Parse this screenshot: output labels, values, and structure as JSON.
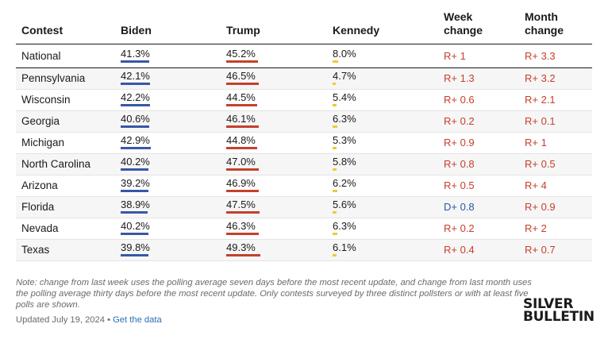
{
  "colors": {
    "biden": "#3658a6",
    "trump": "#c5402c",
    "kennedy": "#f0cc2e",
    "republican_shift": "#c5402c",
    "democratic_shift": "#2a56a8",
    "link": "#2a6fb5"
  },
  "headers": {
    "contest": "Contest",
    "biden": "Biden",
    "trump": "Trump",
    "kennedy": "Kennedy",
    "week_line1": "Week",
    "week_line2": "change",
    "month_line1": "Month",
    "month_line2": "change"
  },
  "rows": [
    {
      "contest": "National",
      "biden": "41.3%",
      "biden_value": 41.3,
      "trump": "45.2%",
      "trump_value": 45.2,
      "kennedy": "8.0%",
      "kennedy_value": 8.0,
      "week": "R+ 1",
      "week_party": "R",
      "month": "R+ 3.3",
      "month_party": "R"
    },
    {
      "contest": "Pennsylvania",
      "biden": "42.1%",
      "biden_value": 42.1,
      "trump": "46.5%",
      "trump_value": 46.5,
      "kennedy": "4.7%",
      "kennedy_value": 4.7,
      "week": "R+ 1.3",
      "week_party": "R",
      "month": "R+ 3.2",
      "month_party": "R"
    },
    {
      "contest": "Wisconsin",
      "biden": "42.2%",
      "biden_value": 42.2,
      "trump": "44.5%",
      "trump_value": 44.5,
      "kennedy": "5.4%",
      "kennedy_value": 5.4,
      "week": "R+ 0.6",
      "week_party": "R",
      "month": "R+ 2.1",
      "month_party": "R"
    },
    {
      "contest": "Georgia",
      "biden": "40.6%",
      "biden_value": 40.6,
      "trump": "46.1%",
      "trump_value": 46.1,
      "kennedy": "6.3%",
      "kennedy_value": 6.3,
      "week": "R+ 0.2",
      "week_party": "R",
      "month": "R+ 0.1",
      "month_party": "R"
    },
    {
      "contest": "Michigan",
      "biden": "42.9%",
      "biden_value": 42.9,
      "trump": "44.8%",
      "trump_value": 44.8,
      "kennedy": "5.3%",
      "kennedy_value": 5.3,
      "week": "R+ 0.9",
      "week_party": "R",
      "month": "R+ 1",
      "month_party": "R"
    },
    {
      "contest": "North Carolina",
      "biden": "40.2%",
      "biden_value": 40.2,
      "trump": "47.0%",
      "trump_value": 47.0,
      "kennedy": "5.8%",
      "kennedy_value": 5.8,
      "week": "R+ 0.8",
      "week_party": "R",
      "month": "R+ 0.5",
      "month_party": "R"
    },
    {
      "contest": "Arizona",
      "biden": "39.2%",
      "biden_value": 39.2,
      "trump": "46.9%",
      "trump_value": 46.9,
      "kennedy": "6.2%",
      "kennedy_value": 6.2,
      "week": "R+ 0.5",
      "week_party": "R",
      "month": "R+ 4",
      "month_party": "R"
    },
    {
      "contest": "Florida",
      "biden": "38.9%",
      "biden_value": 38.9,
      "trump": "47.5%",
      "trump_value": 47.5,
      "kennedy": "5.6%",
      "kennedy_value": 5.6,
      "week": "D+ 0.8",
      "week_party": "D",
      "month": "R+ 0.9",
      "month_party": "R"
    },
    {
      "contest": "Nevada",
      "biden": "40.2%",
      "biden_value": 40.2,
      "trump": "46.3%",
      "trump_value": 46.3,
      "kennedy": "6.3%",
      "kennedy_value": 6.3,
      "week": "R+ 0.2",
      "week_party": "R",
      "month": "R+ 2",
      "month_party": "R"
    },
    {
      "contest": "Texas",
      "biden": "39.8%",
      "biden_value": 39.8,
      "trump": "49.3%",
      "trump_value": 49.3,
      "kennedy": "6.1%",
      "kennedy_value": 6.1,
      "week": "R+ 0.4",
      "week_party": "R",
      "month": "R+ 0.7",
      "month_party": "R"
    }
  ],
  "note": "Note: change from last week uses the polling average seven days before the most recent update, and change from last month uses the polling average thirty days before the most recent update. Only contests surveyed by three distinct pollsters or with at least five polls are shown.",
  "footer": {
    "updated": "Updated July 19, 2024",
    "separator": " • ",
    "link_label": "Get the data"
  },
  "logo": {
    "line1": "SILVER",
    "line2": "BULLETIN"
  }
}
